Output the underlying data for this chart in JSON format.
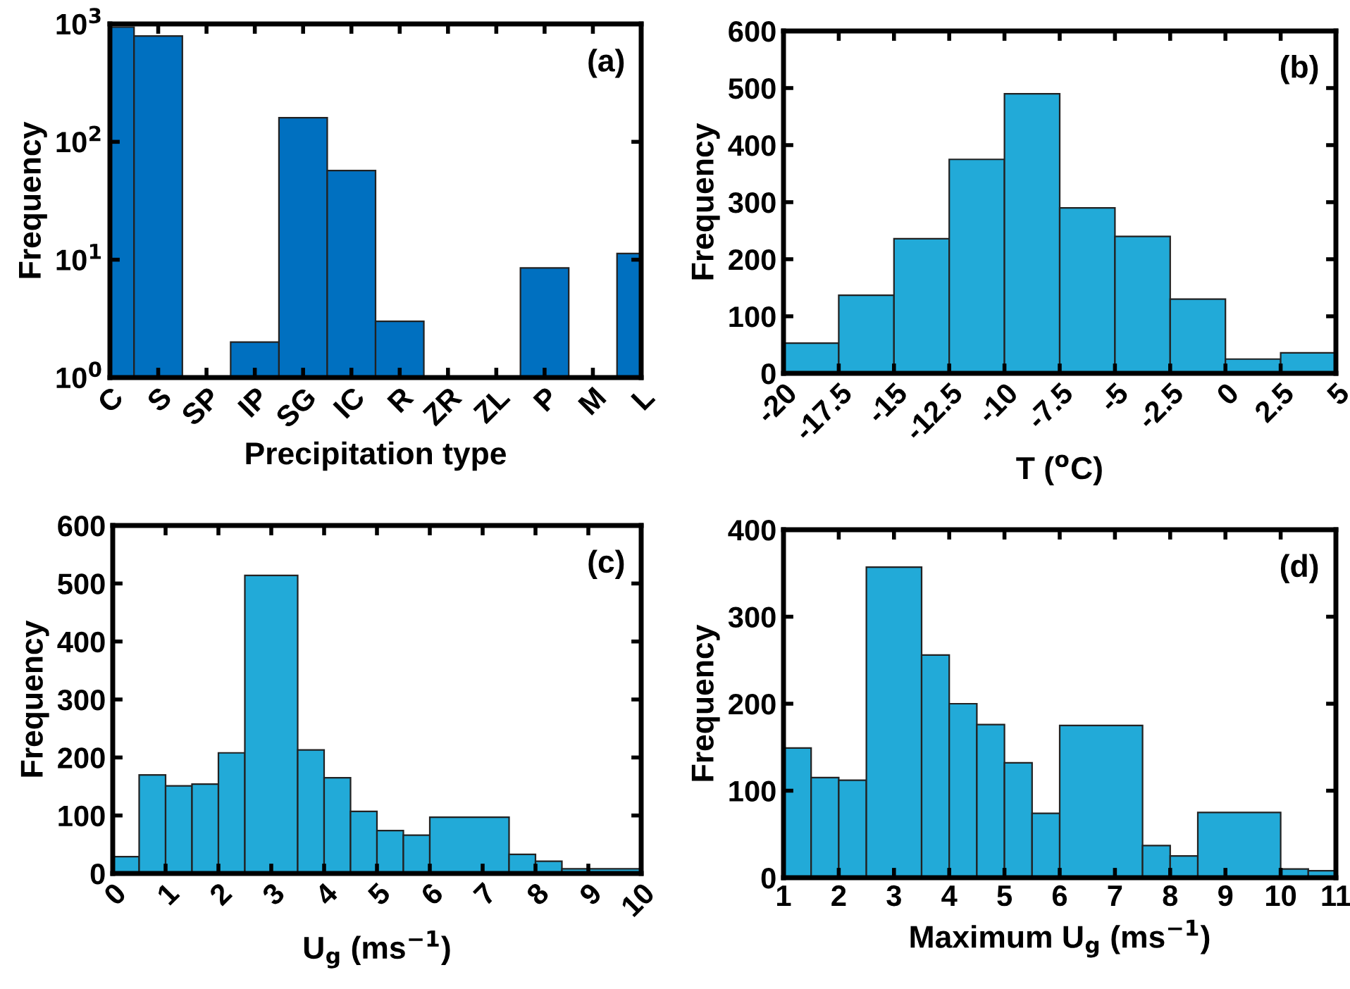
{
  "chart_data": [
    {
      "type": "bar",
      "categories": [
        "C",
        "S",
        "SP",
        "IP",
        "SG",
        "IC",
        "R",
        "ZR",
        "ZL",
        "P",
        "M",
        "L"
      ],
      "values": [
        940,
        790,
        null,
        2,
        160,
        57,
        3,
        null,
        null,
        8.5,
        null,
        11.3
      ],
      "color": "#0070c0",
      "log": true,
      "ylim": [
        1,
        1000
      ],
      "yticks": [
        {
          "value": 1,
          "label": "10$^{0}$"
        },
        {
          "value": 10,
          "label": "10$^{1}$"
        },
        {
          "value": 100,
          "label": "10$^{2}$"
        },
        {
          "value": 1000,
          "label": "10$^{3}$"
        }
      ],
      "xlabel": "Precipitation type",
      "ylabel": "Frequency",
      "annotations": [
        "(a)"
      ],
      "grid": false,
      "legend": false
    },
    {
      "type": "histogram",
      "bins": [
        -20,
        -17.5,
        -15,
        -12.5,
        -10,
        -7.5,
        -5,
        -2.5,
        0,
        2.5,
        5
      ],
      "values": [
        53,
        137,
        236,
        375,
        490,
        290,
        240,
        130,
        25,
        36
      ],
      "color": "#22aad8",
      "xlim": [
        -20,
        5
      ],
      "xticks": [
        -20,
        -17.5,
        -15,
        -12.5,
        -10,
        -7.5,
        -5,
        -2.5,
        0,
        2.5,
        5
      ],
      "ylim": [
        0,
        600
      ],
      "yticks": [
        0,
        100,
        200,
        300,
        400,
        500,
        600
      ],
      "xlabel": "T ($^{o}$C)",
      "ylabel": "Frequency",
      "annotations": [
        "(b)"
      ],
      "grid": false,
      "legend": false
    },
    {
      "type": "histogram",
      "bins": [
        0,
        0.5,
        1,
        1.5,
        2,
        2.5,
        3.5,
        4,
        4.5,
        5,
        5.5,
        6,
        7.5,
        8,
        8.5,
        10
      ],
      "values": [
        29,
        170,
        151,
        154,
        208,
        514,
        213,
        165,
        107,
        74,
        66,
        97,
        33,
        21,
        8
      ],
      "color": "#22aad8",
      "xlim": [
        0,
        10
      ],
      "xticks": [
        0,
        1,
        2,
        3,
        4,
        5,
        6,
        7,
        8,
        9,
        10
      ],
      "ylim": [
        0,
        600
      ],
      "yticks": [
        0,
        100,
        200,
        300,
        400,
        500,
        600
      ],
      "xlabel": "U$_{g}$ (ms$^{−1}$)",
      "ylabel": "Frequency",
      "annotations": [
        "(c)"
      ],
      "grid": false,
      "legend": false
    },
    {
      "type": "histogram",
      "bins": [
        1,
        1.5,
        2,
        2.5,
        3.5,
        4,
        4.5,
        5,
        5.5,
        6,
        7.5,
        8,
        8.5,
        10,
        10.5,
        11
      ],
      "values": [
        149,
        115,
        112,
        357,
        256,
        200,
        176,
        132,
        74,
        175,
        37,
        25,
        75,
        10,
        8
      ],
      "color": "#22aad8",
      "xlim": [
        1,
        11
      ],
      "xticks": [
        1,
        2,
        3,
        4,
        5,
        6,
        7,
        8,
        9,
        10,
        11
      ],
      "ylim": [
        0,
        400
      ],
      "yticks": [
        0,
        100,
        200,
        300,
        400
      ],
      "xlabel": "Maximum U$_{g}$ (ms$^{−1}$)",
      "ylabel": "Frequency",
      "annotations": [
        "(d)"
      ],
      "grid": false,
      "legend": false
    }
  ]
}
